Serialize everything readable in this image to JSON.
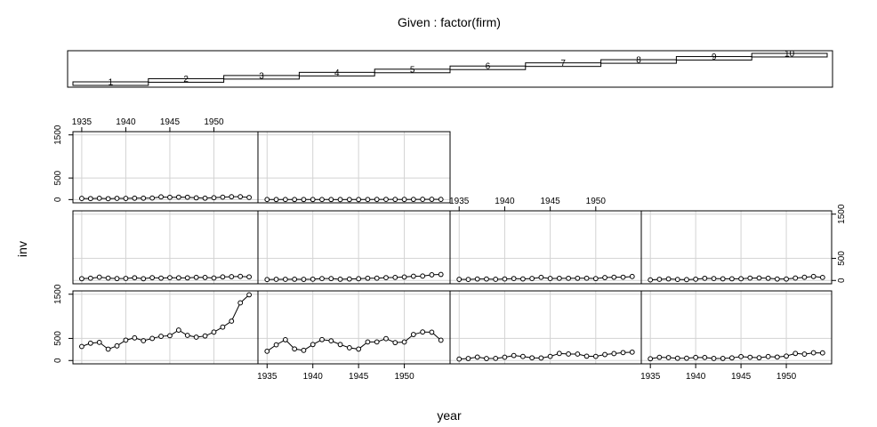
{
  "chart_data": {
    "type": "line",
    "title": "Given : factor(firm)",
    "xlabel": "year",
    "ylabel": "inv",
    "xlim": [
      1934,
      1955
    ],
    "ylim": [
      -75,
      1575
    ],
    "x_ticks": [
      1935,
      1940,
      1945,
      1950
    ],
    "y_ticks": [
      0,
      500,
      1500
    ],
    "grid": true,
    "given_levels": [
      "1",
      "2",
      "3",
      "4",
      "5",
      "6",
      "7",
      "8",
      "9",
      "10"
    ],
    "x": [
      1935,
      1936,
      1937,
      1938,
      1939,
      1940,
      1941,
      1942,
      1943,
      1944,
      1945,
      1946,
      1947,
      1948,
      1949,
      1950,
      1951,
      1952,
      1953,
      1954
    ],
    "series": [
      {
        "firm": "1",
        "values": [
          317.6,
          391.8,
          410.6,
          257.7,
          330.8,
          461.2,
          512.0,
          448.0,
          499.6,
          547.5,
          561.2,
          688.1,
          568.9,
          529.2,
          555.1,
          642.9,
          755.9,
          891.2,
          1304.4,
          1486.7
        ]
      },
      {
        "firm": "2",
        "values": [
          209.9,
          355.3,
          469.9,
          262.3,
          230.4,
          361.6,
          472.8,
          445.6,
          361.6,
          288.2,
          258.7,
          420.3,
          420.5,
          494.5,
          405.1,
          418.8,
          588.2,
          645.5,
          641.0,
          459.3
        ]
      },
      {
        "firm": "3",
        "values": [
          33.1,
          45.0,
          77.2,
          44.6,
          48.1,
          74.4,
          113.0,
          91.9,
          61.3,
          56.8,
          93.6,
          159.9,
          147.2,
          146.3,
          98.3,
          93.5,
          135.2,
          157.3,
          179.5,
          189.6
        ]
      },
      {
        "firm": "4",
        "values": [
          40.29,
          72.76,
          66.26,
          51.6,
          52.41,
          69.41,
          68.35,
          46.8,
          47.4,
          59.57,
          88.78,
          74.12,
          62.68,
          89.36,
          78.98,
          100.66,
          160.62,
          145.0,
          174.93,
          172.49
        ]
      },
      {
        "firm": "5",
        "values": [
          39.68,
          50.73,
          74.24,
          53.51,
          42.65,
          46.48,
          61.4,
          39.67,
          62.24,
          52.32,
          63.21,
          59.37,
          58.02,
          70.34,
          67.42,
          55.74,
          80.3,
          85.4,
          91.9,
          81.43
        ]
      },
      {
        "firm": "6",
        "values": [
          20.36,
          25.98,
          25.94,
          27.53,
          24.6,
          28.54,
          43.41,
          42.81,
          27.84,
          32.6,
          39.03,
          50.17,
          51.85,
          64.03,
          68.16,
          77.34,
          95.3,
          99.49,
          127.52,
          135.72
        ]
      },
      {
        "firm": "7",
        "values": [
          24.43,
          23.21,
          32.78,
          32.54,
          26.65,
          33.71,
          43.5,
          34.46,
          44.28,
          70.8,
          44.12,
          48.98,
          48.51,
          50.0,
          50.59,
          42.53,
          64.77,
          72.68,
          73.86,
          89.51
        ]
      },
      {
        "firm": "8",
        "values": [
          12.93,
          25.9,
          35.05,
          22.89,
          18.84,
          28.57,
          48.51,
          43.34,
          37.02,
          37.81,
          39.27,
          53.46,
          55.56,
          49.56,
          32.04,
          32.24,
          54.38,
          71.78,
          90.08,
          68.6
        ]
      },
      {
        "firm": "9",
        "values": [
          26.63,
          23.39,
          30.65,
          20.89,
          28.78,
          26.93,
          32.08,
          32.21,
          35.69,
          62.47,
          52.32,
          56.95,
          54.32,
          40.53,
          32.54,
          43.48,
          56.49,
          65.98,
          66.11,
          49.34
        ]
      },
      {
        "firm": "10",
        "values": [
          2.54,
          2.0,
          2.19,
          1.99,
          2.03,
          1.81,
          2.14,
          1.86,
          0.93,
          1.18,
          1.36,
          2.24,
          3.81,
          5.66,
          4.21,
          3.42,
          4.67,
          6.0,
          6.53,
          5.12
        ]
      }
    ]
  }
}
